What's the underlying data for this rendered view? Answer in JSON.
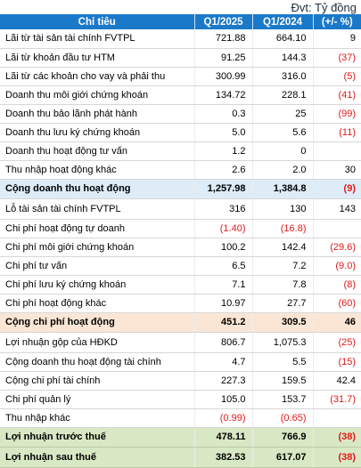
{
  "unit_label": "Đvt: Tỷ đồng",
  "header": {
    "label": "Chỉ tiêu",
    "q1_2025": "Q1/2025",
    "q1_2024": "Q1/2024",
    "change": "(+/- %)"
  },
  "rows": [
    {
      "label": "Lãi từ tài sản tài chính FVTPL",
      "q1_2025": "721.88",
      "q1_2024": "664.10",
      "change": "9"
    },
    {
      "label": "Lãi từ khoản đầu tư HTM",
      "q1_2025": "91.25",
      "q1_2024": "144.3",
      "change": "(37)"
    },
    {
      "label": "Lãi từ các khoản cho vay và phải thu",
      "q1_2025": "300.99",
      "q1_2024": "316.0",
      "change": "(5)"
    },
    {
      "label": "Doanh thu môi giới chứng khoán",
      "q1_2025": "134.72",
      "q1_2024": "228.1",
      "change": "(41)"
    },
    {
      "label": "Doanh thu bảo lãnh phát hành",
      "q1_2025": "0.3",
      "q1_2024": "25",
      "change": "(99)"
    },
    {
      "label": "Doanh thu lưu ký chứng khoán",
      "q1_2025": "5.0",
      "q1_2024": "5.6",
      "change": "(11)"
    },
    {
      "label": "Doanh thu hoạt động tư vấn",
      "q1_2025": "1.2",
      "q1_2024": "0",
      "change": ""
    },
    {
      "label": "Thu nhập hoạt động khác",
      "q1_2025": "2.6",
      "q1_2024": "2.0",
      "change": "30"
    },
    {
      "label": "Cộng doanh thu hoạt động",
      "q1_2025": "1,257.98",
      "q1_2024": "1,384.8",
      "change": "(9)",
      "highlight": "blue"
    },
    {
      "label": "Lỗ tài sản tài chính FVTPL",
      "q1_2025": "316",
      "q1_2024": "130",
      "change": "143"
    },
    {
      "label": "Chi phí hoạt động tự doanh",
      "q1_2025": "(1.40)",
      "q1_2024": "(16.8)",
      "change": ""
    },
    {
      "label": "Chi phí môi giới chứng khoán",
      "q1_2025": "100.2",
      "q1_2024": "142.4",
      "change": "(29.6)"
    },
    {
      "label": "Chi phí tư vấn",
      "q1_2025": "6.5",
      "q1_2024": "7.2",
      "change": "(9.0)"
    },
    {
      "label": "Chi phí lưu ký chứng khoán",
      "q1_2025": "7.1",
      "q1_2024": "7.8",
      "change": "(8)"
    },
    {
      "label": "Chi phí hoạt động khác",
      "q1_2025": "10.97",
      "q1_2024": "27.7",
      "change": "(60)"
    },
    {
      "label": "Cộng chi phí hoạt động",
      "q1_2025": "451.2",
      "q1_2024": "309.5",
      "change": "46",
      "highlight": "orange"
    },
    {
      "label": "Lợi nhuận gộp của HĐKD",
      "q1_2025": "806.7",
      "q1_2024": "1,075.3",
      "change": "(25)"
    },
    {
      "label": "Cộng doanh thu hoạt động tài chính",
      "q1_2025": "4.7",
      "q1_2024": "5.5",
      "change": "(15)"
    },
    {
      "label": "Cộng chi phí tài chính",
      "q1_2025": "227.3",
      "q1_2024": "159.5",
      "change": "42.4"
    },
    {
      "label": "Chi phí quản lý",
      "q1_2025": "105.0",
      "q1_2024": "153.7",
      "change": "(31.7)"
    },
    {
      "label": "Thu nhập khác",
      "q1_2025": "(0.99)",
      "q1_2024": "(0.65)",
      "change": ""
    },
    {
      "label": "Lợi nhuận trước thuế",
      "q1_2025": "478.11",
      "q1_2024": "766.9",
      "change": "(38)",
      "highlight": "green"
    },
    {
      "label": "Lợi nhuận sau thuế",
      "q1_2025": "382.53",
      "q1_2024": "617.07",
      "change": "(38)",
      "highlight": "green"
    }
  ]
}
